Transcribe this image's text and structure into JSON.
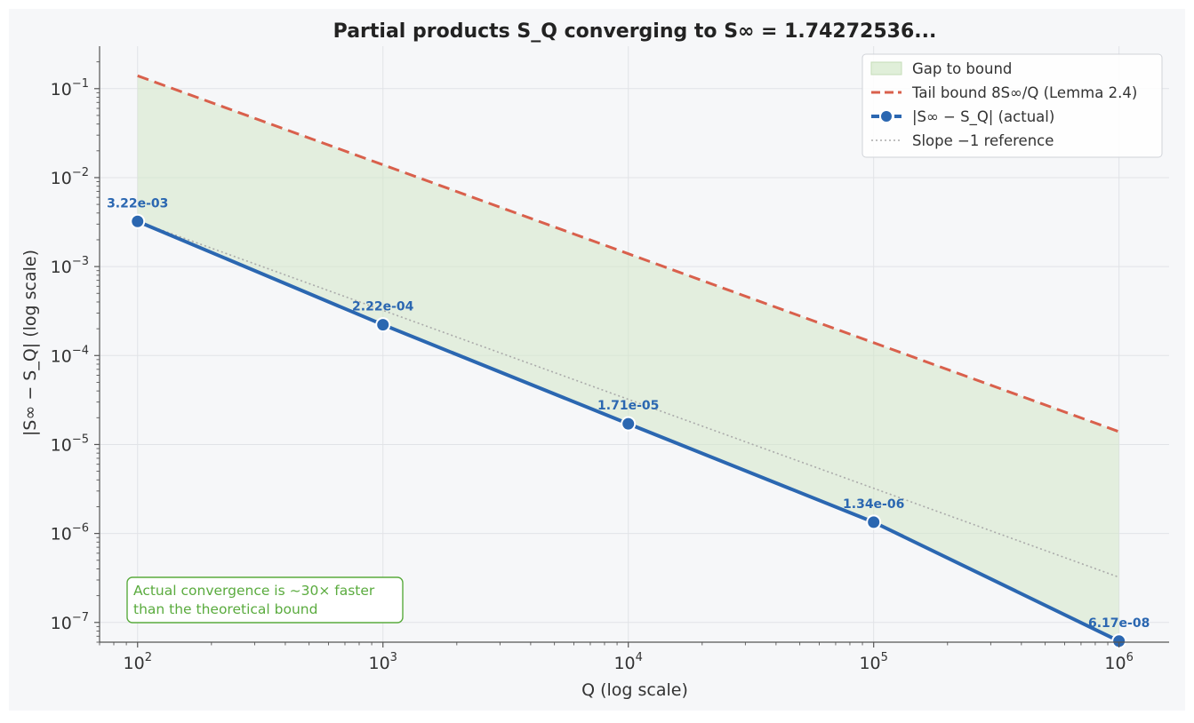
{
  "chart_data": {
    "type": "line",
    "title": "Partial products S_Q converging to S∞ = 1.74272536...",
    "xlabel": "Q  (log scale)",
    "ylabel": "|S∞ − S_Q|  (log scale)",
    "x_scale": "log",
    "y_scale": "log",
    "xlim": [
      70,
      1600000
    ],
    "ylim": [
      6e-08,
      0.3
    ],
    "grid": true,
    "legend_position": "top-right",
    "x_ticks": [
      {
        "value": 100,
        "base": "10",
        "exp": "2"
      },
      {
        "value": 1000,
        "base": "10",
        "exp": "3"
      },
      {
        "value": 10000,
        "base": "10",
        "exp": "4"
      },
      {
        "value": 100000,
        "base": "10",
        "exp": "5"
      },
      {
        "value": 1000000,
        "base": "10",
        "exp": "6"
      }
    ],
    "y_ticks": [
      {
        "value": 0.1,
        "base": "10",
        "exp": "−1"
      },
      {
        "value": 0.01,
        "base": "10",
        "exp": "−2"
      },
      {
        "value": 0.001,
        "base": "10",
        "exp": "−3"
      },
      {
        "value": 0.0001,
        "base": "10",
        "exp": "−4"
      },
      {
        "value": 1e-05,
        "base": "10",
        "exp": "−5"
      },
      {
        "value": 1e-06,
        "base": "10",
        "exp": "−6"
      },
      {
        "value": 1e-07,
        "base": "10",
        "exp": "−7"
      }
    ],
    "series": [
      {
        "name": "Tail bound 8S∞/Q (Lemma 2.4)",
        "style": "dashed",
        "color": "#d9604c",
        "x": [
          100,
          1000000
        ],
        "y": [
          0.1394,
          1.394e-05
        ]
      },
      {
        "name": "|S∞ − S_Q|  (actual)",
        "style": "solid-markers",
        "color": "#2b67b1",
        "x": [
          100,
          1000,
          10000,
          100000,
          1000000
        ],
        "y": [
          0.00322,
          0.000222,
          1.71e-05,
          1.34e-06,
          6.17e-08
        ],
        "labels": [
          "3.22e-03",
          "2.22e-04",
          "1.71e-05",
          "1.34e-06",
          "6.17e-08"
        ]
      },
      {
        "name": "Slope −1 reference",
        "style": "dotted",
        "color": "#aaaaaa",
        "x": [
          100,
          1000000
        ],
        "y": [
          0.00322,
          3.22e-07
        ]
      }
    ],
    "fill": {
      "name": "Gap to bound",
      "color": "#d3e8c9"
    },
    "annotation": {
      "lines": [
        "Actual convergence is ~30× faster",
        "than the theoretical bound"
      ],
      "color": "#5aab3e"
    }
  }
}
